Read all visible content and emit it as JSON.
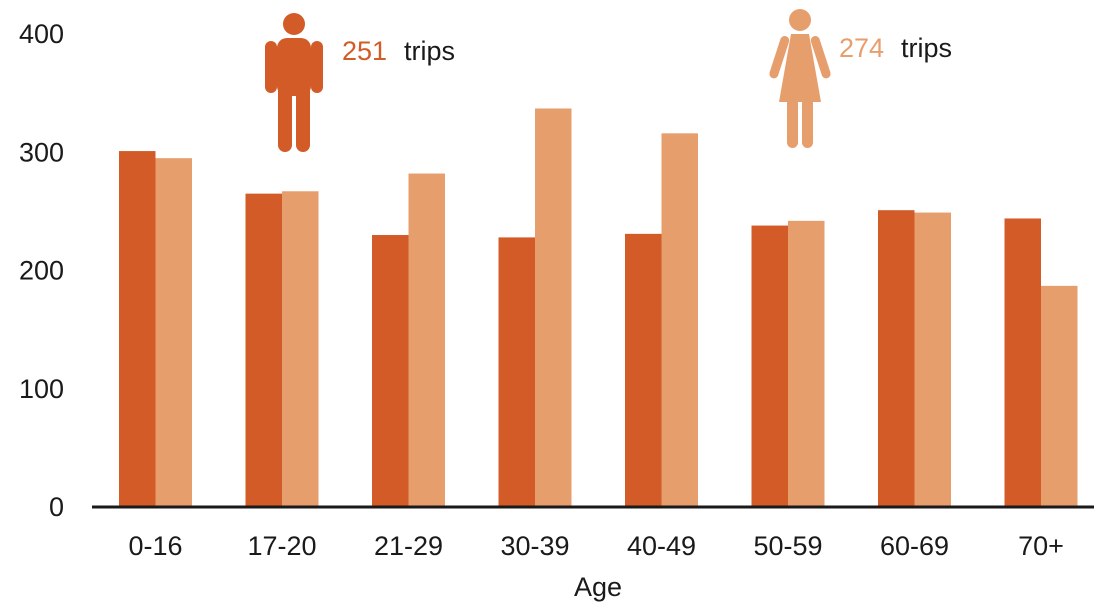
{
  "chart_data": {
    "type": "bar",
    "title": "",
    "xlabel": "Age",
    "ylabel": "",
    "ylim": [
      0,
      400
    ],
    "yticks": [
      0,
      100,
      200,
      300,
      400
    ],
    "categories": [
      "0-16",
      "17-20",
      "21-29",
      "30-39",
      "40-49",
      "50-59",
      "60-69",
      "70+"
    ],
    "series": [
      {
        "key": "male",
        "values": [
          301,
          265,
          230,
          228,
          231,
          238,
          251,
          244
        ]
      },
      {
        "key": "female",
        "values": [
          295,
          267,
          282,
          337,
          316,
          242,
          249,
          187
        ]
      }
    ],
    "annotations": [
      {
        "series": "male",
        "icon": "male-person-icon",
        "value": "251",
        "unit": "trips"
      },
      {
        "series": "female",
        "icon": "female-person-icon",
        "value": "274",
        "unit": "trips"
      }
    ],
    "grid": false,
    "legend": "none"
  },
  "colors": {
    "male": "#D25B27",
    "female": "#E79E6D",
    "text": "#1a1a1a",
    "axis": "#1a1a1a"
  }
}
